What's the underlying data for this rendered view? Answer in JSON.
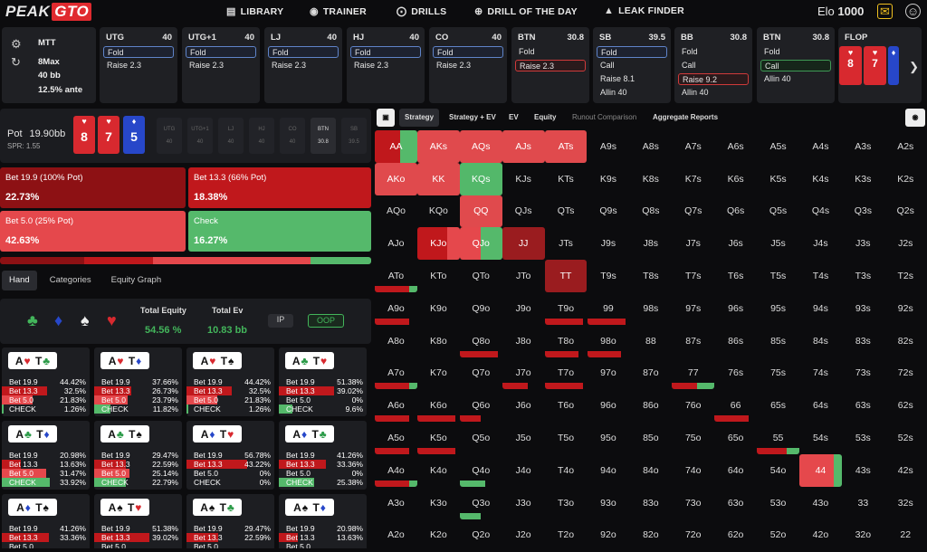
{
  "nav": {
    "logo_a": "PEAK",
    "logo_b": "GTO",
    "items": [
      {
        "icon": "book-icon",
        "label": "LIBRARY"
      },
      {
        "icon": "gamepad-icon",
        "label": "TRAINER"
      },
      {
        "icon": "target-icon",
        "label": "DRILLS"
      },
      {
        "icon": "plus-circle-icon",
        "label": "DRILL OF THE DAY"
      },
      {
        "icon": "flame-icon",
        "label": "LEAK FINDER"
      }
    ],
    "elo_label": "Elo",
    "elo_value": "1000"
  },
  "info": {
    "format": "MTT",
    "table": "8Max",
    "stack": "40 bb",
    "ante": "12.5% ante"
  },
  "positions": [
    {
      "name": "UTG",
      "stack": "40",
      "actions": [
        "Fold",
        "Raise 2.3"
      ],
      "sel": 0,
      "selcolor": "blue"
    },
    {
      "name": "UTG+1",
      "stack": "40",
      "actions": [
        "Fold",
        "Raise 2.3"
      ],
      "sel": 0,
      "selcolor": "blue"
    },
    {
      "name": "LJ",
      "stack": "40",
      "actions": [
        "Fold",
        "Raise 2.3"
      ],
      "sel": 0,
      "selcolor": "blue"
    },
    {
      "name": "HJ",
      "stack": "40",
      "actions": [
        "Fold",
        "Raise 2.3"
      ],
      "sel": 0,
      "selcolor": "blue"
    },
    {
      "name": "CO",
      "stack": "40",
      "actions": [
        "Fold",
        "Raise 2.3"
      ],
      "sel": 0,
      "selcolor": "blue"
    },
    {
      "name": "BTN",
      "stack": "30.8",
      "actions": [
        "Fold",
        "Raise 2.3"
      ],
      "sel": 1,
      "selcolor": "red"
    },
    {
      "name": "SB",
      "stack": "39.5",
      "actions": [
        "Fold",
        "Call",
        "Raise 8.1",
        "Allin 40"
      ],
      "sel": 0,
      "selcolor": "blue"
    },
    {
      "name": "BB",
      "stack": "30.8",
      "actions": [
        "Fold",
        "Call",
        "Raise 9.2",
        "Allin 40"
      ],
      "sel": 2,
      "selcolor": "red"
    },
    {
      "name": "BTN",
      "stack": "30.8",
      "actions": [
        "Fold",
        "Call",
        "Allin 40"
      ],
      "sel": 1,
      "selcolor": "green"
    }
  ],
  "flop": {
    "label": "FLOP",
    "cards": [
      {
        "r": "8",
        "s": "♥",
        "c": "#d8292f"
      },
      {
        "r": "7",
        "s": "♥",
        "c": "#d8292f"
      },
      {
        "r": "",
        "s": "♦",
        "c": "#2747c9"
      }
    ]
  },
  "pot": {
    "label": "Pot",
    "value": "19.90bb",
    "spr": "SPR: 1.55",
    "board": [
      {
        "r": "8",
        "s": "♥",
        "c": "#d8292f"
      },
      {
        "r": "7",
        "s": "♥",
        "c": "#d8292f"
      },
      {
        "r": "5",
        "s": "♦",
        "c": "#2747c9"
      }
    ],
    "seats": [
      {
        "n": "UTG",
        "s": "40"
      },
      {
        "n": "UTG+1",
        "s": "40"
      },
      {
        "n": "LJ",
        "s": "40"
      },
      {
        "n": "HJ",
        "s": "40"
      },
      {
        "n": "CO",
        "s": "40"
      },
      {
        "n": "BTN",
        "s": "30.8"
      },
      {
        "n": "SB",
        "s": "39.5"
      }
    ]
  },
  "options": [
    {
      "label": "Bet 19.9 (100% Pot)",
      "value": "22.73%",
      "color": "#8d1114"
    },
    {
      "label": "Bet 13.3 (66% Pot)",
      "value": "18.38%",
      "color": "#c0181c"
    },
    {
      "label": "Bet 5.0 (25% Pot)",
      "value": "42.63%",
      "color": "#e5484c"
    },
    {
      "label": "Check",
      "value": "16.27%",
      "color": "#55b96b"
    }
  ],
  "freq": [
    {
      "pct": 22.73,
      "color": "#8d1114"
    },
    {
      "pct": 18.38,
      "color": "#c0181c"
    },
    {
      "pct": 42.63,
      "color": "#e5484c"
    },
    {
      "pct": 16.27,
      "color": "#55b96b"
    }
  ],
  "left_tabs": [
    "Hand",
    "Categories",
    "Equity Graph"
  ],
  "equity": {
    "total_equity_label": "Total Equity",
    "total_equity": "54.56 %",
    "total_ev_label": "Total Ev",
    "total_ev": "10.83 bb",
    "ip": "IP",
    "oop": "OOP"
  },
  "hands": [
    {
      "c1": [
        "A",
        "♥"
      ],
      "c2": [
        "T",
        "♣"
      ],
      "v": [
        "44.42%",
        "32.5%",
        "21.83%",
        "1.26%"
      ]
    },
    {
      "c1": [
        "A",
        "♥"
      ],
      "c2": [
        "T",
        "♦"
      ],
      "v": [
        "37.66%",
        "26.73%",
        "23.79%",
        "11.82%"
      ]
    },
    {
      "c1": [
        "A",
        "♥"
      ],
      "c2": [
        "T",
        "♠"
      ],
      "v": [
        "44.42%",
        "32.5%",
        "21.83%",
        "1.26%"
      ]
    },
    {
      "c1": [
        "A",
        "♣"
      ],
      "c2": [
        "T",
        "♥"
      ],
      "v": [
        "51.38%",
        "39.02%",
        "0%",
        "9.6%"
      ]
    },
    {
      "c1": [
        "A",
        "♣"
      ],
      "c2": [
        "T",
        "♦"
      ],
      "v": [
        "20.98%",
        "13.63%",
        "31.47%",
        "33.92%"
      ]
    },
    {
      "c1": [
        "A",
        "♣"
      ],
      "c2": [
        "T",
        "♠"
      ],
      "v": [
        "29.47%",
        "22.59%",
        "25.14%",
        "22.79%"
      ]
    },
    {
      "c1": [
        "A",
        "♦"
      ],
      "c2": [
        "T",
        "♥"
      ],
      "v": [
        "56.78%",
        "43.22%",
        "0%",
        "0%"
      ]
    },
    {
      "c1": [
        "A",
        "♦"
      ],
      "c2": [
        "T",
        "♣"
      ],
      "v": [
        "41.26%",
        "33.36%",
        "0%",
        "25.38%"
      ]
    },
    {
      "c1": [
        "A",
        "♦"
      ],
      "c2": [
        "T",
        "♠"
      ],
      "v": [
        "41.26%",
        "33.36%",
        "",
        ""
      ]
    },
    {
      "c1": [
        "A",
        "♠"
      ],
      "c2": [
        "T",
        "♥"
      ],
      "v": [
        "51.38%",
        "39.02%",
        "",
        ""
      ]
    },
    {
      "c1": [
        "A",
        "♠"
      ],
      "c2": [
        "T",
        "♣"
      ],
      "v": [
        "29.47%",
        "22.59%",
        "",
        ""
      ]
    },
    {
      "c1": [
        "A",
        "♠"
      ],
      "c2": [
        "T",
        "♦"
      ],
      "v": [
        "20.98%",
        "13.63%",
        "",
        ""
      ]
    }
  ],
  "hand_rows": [
    "Bet 19.9",
    "Bet 13.3",
    "Bet 5.0",
    "CHECK"
  ],
  "right_tabs": [
    "Strategy",
    "Strategy + EV",
    "EV",
    "Equity",
    "Runout Comparison",
    "Aggregate Reports"
  ],
  "matrix": [
    [
      "AA",
      "AKs",
      "AQs",
      "AJs",
      "ATs",
      "A9s",
      "A8s",
      "A7s",
      "A6s",
      "A5s",
      "A4s",
      "A3s",
      "A2s"
    ],
    [
      "AKo",
      "KK",
      "KQs",
      "KJs",
      "KTs",
      "K9s",
      "K8s",
      "K7s",
      "K6s",
      "K5s",
      "K4s",
      "K3s",
      "K2s"
    ],
    [
      "AQo",
      "KQo",
      "QQ",
      "QJs",
      "QTs",
      "Q9s",
      "Q8s",
      "Q7s",
      "Q6s",
      "Q5s",
      "Q4s",
      "Q3s",
      "Q2s"
    ],
    [
      "AJo",
      "KJo",
      "QJo",
      "JJ",
      "JTs",
      "J9s",
      "J8s",
      "J7s",
      "J6s",
      "J5s",
      "J4s",
      "J3s",
      "J2s"
    ],
    [
      "ATo",
      "KTo",
      "QTo",
      "JTo",
      "TT",
      "T9s",
      "T8s",
      "T7s",
      "T6s",
      "T5s",
      "T4s",
      "T3s",
      "T2s"
    ],
    [
      "A9o",
      "K9o",
      "Q9o",
      "J9o",
      "T9o",
      "99",
      "98s",
      "97s",
      "96s",
      "95s",
      "94s",
      "93s",
      "92s"
    ],
    [
      "A8o",
      "K8o",
      "Q8o",
      "J8o",
      "T8o",
      "98o",
      "88",
      "87s",
      "86s",
      "85s",
      "84s",
      "83s",
      "82s"
    ],
    [
      "A7o",
      "K7o",
      "Q7o",
      "J7o",
      "T7o",
      "97o",
      "87o",
      "77",
      "76s",
      "75s",
      "74s",
      "73s",
      "72s"
    ],
    [
      "A6o",
      "K6o",
      "Q6o",
      "J6o",
      "T6o",
      "96o",
      "86o",
      "76o",
      "66",
      "65s",
      "64s",
      "63s",
      "62s"
    ],
    [
      "A5o",
      "K5o",
      "Q5o",
      "J5o",
      "T5o",
      "95o",
      "85o",
      "75o",
      "65o",
      "55",
      "54s",
      "53s",
      "52s"
    ],
    [
      "A4o",
      "K4o",
      "Q4o",
      "J4o",
      "T4o",
      "94o",
      "84o",
      "74o",
      "64o",
      "54o",
      "44",
      "43s",
      "42s"
    ],
    [
      "A3o",
      "K3o",
      "Q3o",
      "J3o",
      "T3o",
      "93o",
      "83o",
      "73o",
      "63o",
      "53o",
      "43o",
      "33",
      "32s"
    ],
    [
      "A2o",
      "K2o",
      "Q2o",
      "J2o",
      "T2o",
      "92o",
      "82o",
      "72o",
      "62o",
      "52o",
      "42o",
      "32o",
      "22"
    ]
  ],
  "colors": {
    "bet_large": "#8d1114",
    "bet_mid": "#c0181c",
    "bet_small": "#e5484c",
    "check": "#55b96b"
  }
}
